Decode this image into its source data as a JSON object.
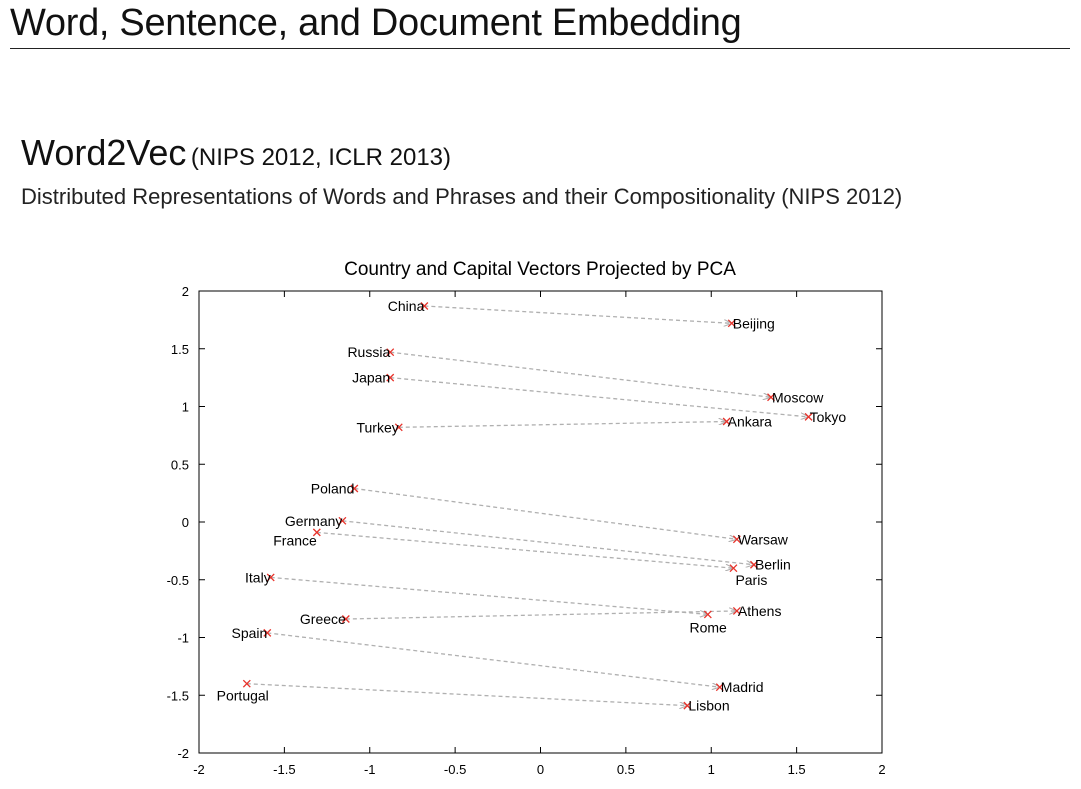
{
  "slide": {
    "title": "Word, Sentence, and Document Embedding",
    "section_main": "Word2Vec",
    "section_sub": "(NIPS 2012, ICLR 2013)",
    "paper_title": "Distributed Representations of Words and Phrases and their Compositionality (NIPS 2012)"
  },
  "chart_data": {
    "type": "scatter",
    "title": "Country and Capital Vectors Projected by PCA",
    "xlabel": "",
    "ylabel": "",
    "xlim": [
      -2,
      2
    ],
    "ylim": [
      -2,
      2
    ],
    "xticks": [
      -2,
      -1.5,
      -1,
      -0.5,
      0,
      0.5,
      1,
      1.5,
      2
    ],
    "yticks": [
      -2,
      -1.5,
      -1,
      -0.5,
      0,
      0.5,
      1,
      1.5,
      2
    ],
    "xtick_labels": [
      "-2",
      "-1.5",
      "-1",
      "-0.5",
      "0",
      "0.5",
      "1",
      "1.5",
      "2"
    ],
    "ytick_labels": [
      "-2",
      "-1.5",
      "-1",
      "-0.5",
      "0",
      "0.5",
      "1",
      "1.5",
      "2"
    ],
    "grid": false,
    "marker_color": "#e8322a",
    "arrow_color": "#b0b0b0",
    "pairs": [
      {
        "country": "China",
        "cx": -0.68,
        "cy": 1.87,
        "capital": "Beijing",
        "kx": 1.12,
        "ky": 1.72
      },
      {
        "country": "Russia",
        "cx": -0.88,
        "cy": 1.47,
        "capital": "Moscow",
        "kx": 1.35,
        "ky": 1.08
      },
      {
        "country": "Japan",
        "cx": -0.88,
        "cy": 1.25,
        "capital": "Tokyo",
        "kx": 1.57,
        "ky": 0.91
      },
      {
        "country": "Turkey",
        "cx": -0.83,
        "cy": 0.82,
        "capital": "Ankara",
        "kx": 1.09,
        "ky": 0.87
      },
      {
        "country": "Poland",
        "cx": -1.09,
        "cy": 0.29,
        "capital": "Warsaw",
        "kx": 1.15,
        "ky": -0.15
      },
      {
        "country": "Germany",
        "cx": -1.16,
        "cy": 0.01,
        "capital": "Berlin",
        "kx": 1.25,
        "ky": -0.37
      },
      {
        "country": "France",
        "cx": -1.31,
        "cy": -0.09,
        "capital": "Paris",
        "kx": 1.13,
        "ky": -0.4
      },
      {
        "country": "Italy",
        "cx": -1.58,
        "cy": -0.48,
        "capital": "Rome",
        "kx": 0.98,
        "ky": -0.8
      },
      {
        "country": "Greece",
        "cx": -1.14,
        "cy": -0.84,
        "capital": "Athens",
        "kx": 1.15,
        "ky": -0.77
      },
      {
        "country": "Spain",
        "cx": -1.6,
        "cy": -0.96,
        "capital": "Madrid",
        "kx": 1.05,
        "ky": -1.43
      },
      {
        "country": "Portugal",
        "cx": -1.72,
        "cy": -1.4,
        "capital": "Lisbon",
        "kx": 0.86,
        "ky": -1.59
      }
    ]
  }
}
